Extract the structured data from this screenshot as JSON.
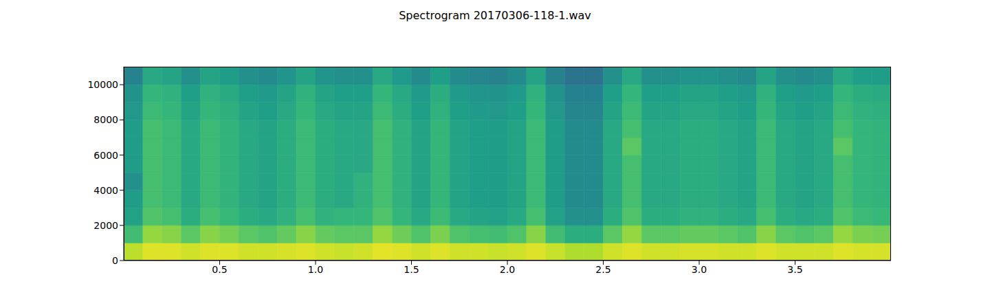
{
  "chart_data": {
    "type": "heatmap",
    "title": "Spectrogram 20170306-118-1.wav",
    "xlim": [
      0,
      4.0
    ],
    "ylim": [
      0,
      11025
    ],
    "xticks": [
      0.5,
      {
        "value": 1,
        "label": "1.0"
      },
      1.5,
      {
        "value": 2,
        "label": "2.0"
      },
      2.5,
      {
        "value": 3,
        "label": "3.0"
      },
      3.5
    ],
    "yticks": [
      0,
      2000,
      4000,
      6000,
      8000,
      10000
    ],
    "x_bins": [
      0,
      0.1,
      0.2,
      0.3,
      0.4,
      0.5,
      0.6,
      0.7,
      0.8,
      0.9,
      1.0,
      1.1,
      1.2,
      1.3,
      1.4,
      1.5,
      1.6,
      1.7,
      1.8,
      1.9,
      2.0,
      2.1,
      2.2,
      2.3,
      2.4,
      2.5,
      2.6,
      2.7,
      2.8,
      2.9,
      3.0,
      3.1,
      3.2,
      3.3,
      3.4,
      3.5,
      3.6,
      3.7,
      3.8,
      3.9,
      4.0
    ],
    "y_bins": [
      0,
      1000,
      2000,
      3000,
      4000,
      5000,
      6000,
      7000,
      8000,
      9000,
      10000,
      11025
    ],
    "color_range": [
      0,
      1
    ],
    "cells": [
      [
        0.9,
        0.95,
        0.95,
        0.93,
        0.95,
        0.95,
        0.93,
        0.93,
        0.94,
        0.95,
        0.93,
        0.92,
        0.93,
        0.96,
        0.95,
        0.93,
        0.95,
        0.93,
        0.93,
        0.92,
        0.93,
        0.95,
        0.92,
        0.88,
        0.88,
        0.93,
        0.95,
        0.93,
        0.93,
        0.94,
        0.94,
        0.93,
        0.93,
        0.95,
        0.93,
        0.93,
        0.93,
        0.95,
        0.94,
        0.94
      ],
      [
        0.69,
        0.84,
        0.82,
        0.74,
        0.82,
        0.79,
        0.74,
        0.72,
        0.76,
        0.82,
        0.76,
        0.74,
        0.74,
        0.84,
        0.78,
        0.72,
        0.8,
        0.72,
        0.7,
        0.69,
        0.72,
        0.82,
        0.69,
        0.62,
        0.62,
        0.74,
        0.84,
        0.74,
        0.74,
        0.76,
        0.76,
        0.74,
        0.72,
        0.82,
        0.74,
        0.72,
        0.74,
        0.84,
        0.8,
        0.79
      ],
      [
        0.57,
        0.72,
        0.7,
        0.62,
        0.7,
        0.67,
        0.62,
        0.6,
        0.64,
        0.7,
        0.64,
        0.66,
        0.66,
        0.72,
        0.66,
        0.6,
        0.68,
        0.6,
        0.58,
        0.57,
        0.6,
        0.7,
        0.57,
        0.5,
        0.5,
        0.62,
        0.72,
        0.62,
        0.62,
        0.64,
        0.64,
        0.62,
        0.6,
        0.7,
        0.62,
        0.6,
        0.62,
        0.72,
        0.68,
        0.67
      ],
      [
        0.55,
        0.7,
        0.68,
        0.6,
        0.68,
        0.65,
        0.6,
        0.58,
        0.62,
        0.68,
        0.62,
        0.6,
        0.64,
        0.7,
        0.64,
        0.58,
        0.66,
        0.58,
        0.56,
        0.55,
        0.58,
        0.68,
        0.55,
        0.48,
        0.48,
        0.6,
        0.7,
        0.6,
        0.6,
        0.62,
        0.62,
        0.6,
        0.58,
        0.68,
        0.6,
        0.58,
        0.6,
        0.7,
        0.66,
        0.65
      ],
      [
        0.5,
        0.7,
        0.68,
        0.6,
        0.68,
        0.65,
        0.6,
        0.58,
        0.62,
        0.68,
        0.62,
        0.6,
        0.64,
        0.7,
        0.64,
        0.58,
        0.66,
        0.58,
        0.56,
        0.55,
        0.58,
        0.68,
        0.55,
        0.48,
        0.48,
        0.6,
        0.7,
        0.6,
        0.6,
        0.62,
        0.62,
        0.6,
        0.58,
        0.68,
        0.6,
        0.58,
        0.6,
        0.7,
        0.66,
        0.65
      ],
      [
        0.55,
        0.7,
        0.68,
        0.6,
        0.68,
        0.65,
        0.6,
        0.58,
        0.62,
        0.68,
        0.62,
        0.6,
        0.6,
        0.7,
        0.64,
        0.58,
        0.66,
        0.58,
        0.56,
        0.55,
        0.58,
        0.68,
        0.55,
        0.48,
        0.48,
        0.6,
        0.7,
        0.6,
        0.6,
        0.62,
        0.62,
        0.6,
        0.58,
        0.68,
        0.6,
        0.58,
        0.6,
        0.7,
        0.66,
        0.65
      ],
      [
        0.55,
        0.7,
        0.68,
        0.6,
        0.68,
        0.65,
        0.6,
        0.58,
        0.62,
        0.68,
        0.62,
        0.6,
        0.6,
        0.7,
        0.64,
        0.58,
        0.66,
        0.58,
        0.56,
        0.55,
        0.58,
        0.68,
        0.55,
        0.48,
        0.48,
        0.6,
        0.74,
        0.6,
        0.6,
        0.62,
        0.62,
        0.6,
        0.58,
        0.68,
        0.6,
        0.58,
        0.6,
        0.74,
        0.66,
        0.65
      ],
      [
        0.55,
        0.7,
        0.68,
        0.6,
        0.68,
        0.65,
        0.6,
        0.58,
        0.62,
        0.68,
        0.62,
        0.6,
        0.6,
        0.7,
        0.64,
        0.58,
        0.66,
        0.58,
        0.56,
        0.55,
        0.58,
        0.68,
        0.55,
        0.48,
        0.48,
        0.6,
        0.7,
        0.6,
        0.6,
        0.62,
        0.62,
        0.6,
        0.58,
        0.68,
        0.6,
        0.58,
        0.6,
        0.7,
        0.66,
        0.65
      ],
      [
        0.53,
        0.68,
        0.66,
        0.58,
        0.66,
        0.63,
        0.58,
        0.56,
        0.6,
        0.66,
        0.6,
        0.58,
        0.58,
        0.68,
        0.62,
        0.56,
        0.64,
        0.56,
        0.54,
        0.53,
        0.56,
        0.66,
        0.53,
        0.46,
        0.46,
        0.58,
        0.68,
        0.58,
        0.58,
        0.6,
        0.6,
        0.58,
        0.56,
        0.66,
        0.58,
        0.56,
        0.58,
        0.68,
        0.64,
        0.63
      ],
      [
        0.51,
        0.66,
        0.64,
        0.56,
        0.64,
        0.61,
        0.56,
        0.54,
        0.58,
        0.64,
        0.58,
        0.56,
        0.56,
        0.66,
        0.6,
        0.54,
        0.62,
        0.54,
        0.52,
        0.51,
        0.54,
        0.64,
        0.51,
        0.44,
        0.44,
        0.56,
        0.66,
        0.56,
        0.56,
        0.58,
        0.58,
        0.56,
        0.54,
        0.64,
        0.56,
        0.54,
        0.56,
        0.66,
        0.62,
        0.61
      ],
      [
        0.45,
        0.6,
        0.58,
        0.5,
        0.58,
        0.55,
        0.5,
        0.48,
        0.52,
        0.58,
        0.52,
        0.5,
        0.5,
        0.6,
        0.54,
        0.48,
        0.56,
        0.48,
        0.46,
        0.45,
        0.48,
        0.58,
        0.45,
        0.38,
        0.38,
        0.5,
        0.6,
        0.5,
        0.5,
        0.52,
        0.52,
        0.5,
        0.48,
        0.58,
        0.5,
        0.48,
        0.5,
        0.6,
        0.56,
        0.55
      ]
    ]
  }
}
